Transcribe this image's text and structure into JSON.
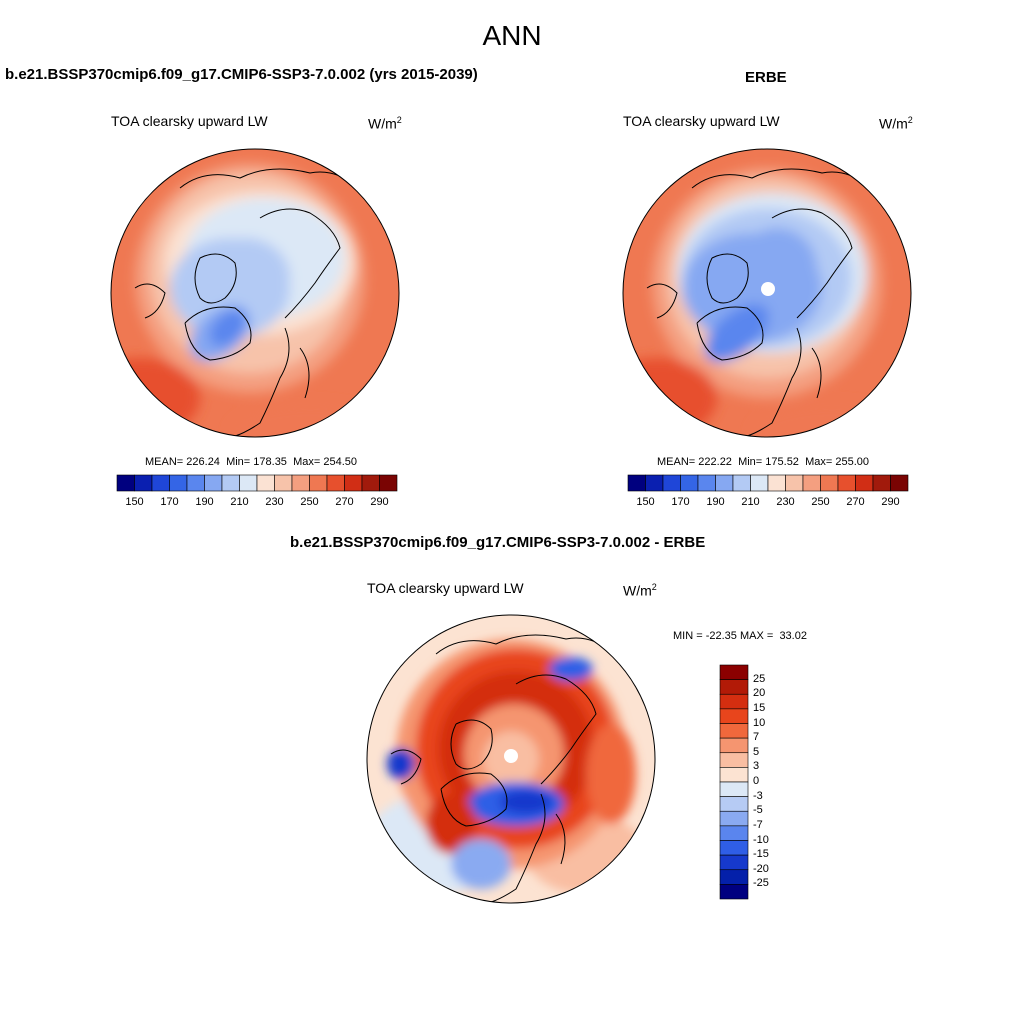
{
  "main_title": "ANN",
  "panels": [
    {
      "case_title": "b.e21.BSSP370cmip6.f09_g17.CMIP6-SSP3-7.0.002 (yrs 2015-2039)",
      "variable": "TOA clearsky upward LW",
      "units": "W/m",
      "units_exp": "2",
      "stats": {
        "mean_label": "MEAN=",
        "mean": "226.24",
        "min_label": "Min=",
        "min": "178.35",
        "max_label": "Max=",
        "max": "254.50"
      }
    },
    {
      "case_title": "ERBE",
      "variable": "TOA clearsky upward LW",
      "units": "W/m",
      "units_exp": "2",
      "stats": {
        "mean_label": "MEAN=",
        "mean": "222.22",
        "min_label": "Min=",
        "min": "175.52",
        "max_label": "Max=",
        "max": "255.00"
      }
    },
    {
      "case_title": "b.e21.BSSP370cmip6.f09_g17.CMIP6-SSP3-7.0.002 - ERBE",
      "variable": "TOA clearsky upward LW",
      "units": "W/m",
      "units_exp": "2",
      "stats": {
        "min_label": "MIN =",
        "min": "-22.35",
        "max_label": "MAX =",
        "max": "33.02"
      }
    }
  ],
  "colorbar_abs": {
    "tick_labels": [
      "150",
      "170",
      "190",
      "210",
      "230",
      "250",
      "270",
      "290"
    ],
    "colors": [
      "#00007f",
      "#0a1fb0",
      "#1f46d8",
      "#3465e6",
      "#5a86ee",
      "#86a8f2",
      "#b3caf4",
      "#dce8f6",
      "#fbe2d3",
      "#f7c3aa",
      "#f49f80",
      "#ef7852",
      "#e7502d",
      "#d12e15",
      "#a11a0c",
      "#7a0403"
    ]
  },
  "colorbar_diff": {
    "labels": [
      "25",
      "20",
      "15",
      "10",
      "7",
      "5",
      "3",
      "0",
      "-3",
      "-5",
      "-7",
      "-10",
      "-15",
      "-20",
      "-25"
    ],
    "colors": [
      "#8b0000",
      "#b21a07",
      "#d42e10",
      "#e8451c",
      "#f0683c",
      "#f59570",
      "#f9bea2",
      "#fce3d2",
      "#dce8f6",
      "#b6cbf4",
      "#8aaaf1",
      "#5a85ee",
      "#2f5ee6",
      "#1639cc",
      "#0420aa",
      "#000080"
    ]
  },
  "map_labels": {
    "model_map": "polar-map-model",
    "obs_map": "polar-map-erbe",
    "diff_map": "polar-map-difference"
  }
}
